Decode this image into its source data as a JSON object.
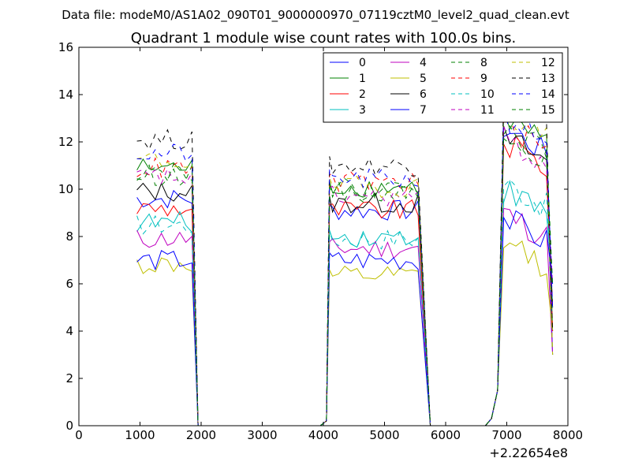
{
  "page": {
    "suptitle": "Data file: modeM0/AS1A02_090T01_9000000970_07119cztM0_level2_quad_clean.evt"
  },
  "chart_data": {
    "type": "line",
    "title": "Quadrant 1 module wise count rates with 100.0s bins.",
    "xlabel": "",
    "ylabel": "",
    "x_offset_label": "+2.22654e8",
    "xlim": [
      0,
      8000
    ],
    "ylim": [
      0,
      16
    ],
    "x_ticks": [
      0,
      1000,
      2000,
      3000,
      4000,
      5000,
      6000,
      7000,
      8000
    ],
    "y_ticks": [
      0,
      2,
      4,
      6,
      8,
      10,
      12,
      14,
      16
    ],
    "grid": false,
    "legend_position": "top-right",
    "segments": [
      {
        "start": 950,
        "n": 10,
        "zero_x": [
          1950,
          4050
        ]
      },
      {
        "start": 4150,
        "n": 15,
        "zero_x": [
          5750,
          6750
        ]
      },
      {
        "start": 6950,
        "n": 8,
        "zero_x": []
      }
    ],
    "edge_values": {
      "s1_tail_x": 1950,
      "s2_lead_x": [
        4050,
        4100
      ],
      "s2_tail_x": 5750,
      "s3_lead_x": [
        6750,
        6850
      ],
      "final_x": 7750
    },
    "series": [
      {
        "name": "0",
        "color": "#0000ff",
        "dash": "solid",
        "levels": [
          9.6,
          9.1,
          12.6
        ]
      },
      {
        "name": "1",
        "color": "#008000",
        "dash": "solid",
        "levels": [
          10.9,
          10.1,
          13.0
        ]
      },
      {
        "name": "2",
        "color": "#ff0000",
        "dash": "solid",
        "levels": [
          9.2,
          9.1,
          12.0
        ]
      },
      {
        "name": "3",
        "color": "#00bfbf",
        "dash": "solid",
        "levels": [
          8.6,
          8.0,
          10.0
        ]
      },
      {
        "name": "4",
        "color": "#bf00bf",
        "dash": "solid",
        "levels": [
          7.9,
          7.5,
          9.0
        ]
      },
      {
        "name": "5",
        "color": "#bfbf00",
        "dash": "solid",
        "levels": [
          6.8,
          6.3,
          7.8
        ]
      },
      {
        "name": "6",
        "color": "#000000",
        "dash": "solid",
        "levels": [
          9.9,
          9.4,
          12.2
        ]
      },
      {
        "name": "7",
        "color": "#0000ff",
        "dash": "solid",
        "levels": [
          7.0,
          7.0,
          8.8
        ]
      },
      {
        "name": "8",
        "color": "#008000",
        "dash": "dashed",
        "levels": [
          10.6,
          9.9,
          12.6
        ]
      },
      {
        "name": "9",
        "color": "#ff0000",
        "dash": "dashed",
        "levels": [
          10.9,
          10.3,
          12.7
        ]
      },
      {
        "name": "10",
        "color": "#00bfbf",
        "dash": "dashed",
        "levels": [
          8.5,
          7.9,
          10.3
        ]
      },
      {
        "name": "11",
        "color": "#bf00bf",
        "dash": "dashed",
        "levels": [
          10.5,
          9.7,
          12.1
        ]
      },
      {
        "name": "12",
        "color": "#bfbf00",
        "dash": "dashed",
        "levels": [
          11.2,
          10.1,
          13.4
        ]
      },
      {
        "name": "13",
        "color": "#000000",
        "dash": "dashed",
        "levels": [
          12.1,
          11.0,
          14.4
        ]
      },
      {
        "name": "14",
        "color": "#0000ff",
        "dash": "dashed",
        "levels": [
          11.5,
          10.4,
          13.1
        ]
      },
      {
        "name": "15",
        "color": "#008000",
        "dash": "dashed",
        "levels": [
          10.8,
          10.0,
          12.4
        ]
      }
    ]
  }
}
